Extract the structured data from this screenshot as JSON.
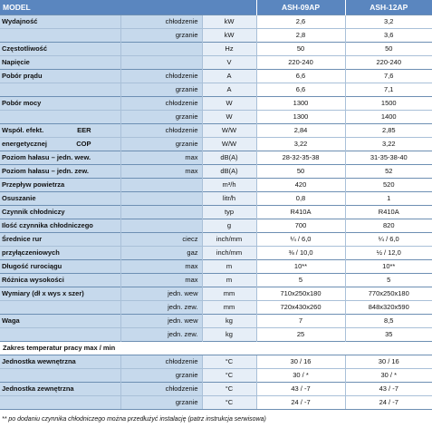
{
  "header": {
    "model": "MODEL",
    "col1": "ASH-09AP",
    "col2": "ASH-12AP"
  },
  "rows": [
    {
      "group": "Wydajność",
      "label": "chłodzenie",
      "unit": "kW",
      "v1": "2,6",
      "v2": "3,2",
      "top": true
    },
    {
      "group": "",
      "label": "grzanie",
      "unit": "kW",
      "v1": "2,8",
      "v2": "3,6",
      "top": false
    },
    {
      "group": "Częstotliwość",
      "label": "",
      "unit": "Hz",
      "v1": "50",
      "v2": "50",
      "top": true
    },
    {
      "group": "Napięcie",
      "label": "",
      "unit": "V",
      "v1": "220-240",
      "v2": "220-240",
      "top": false
    },
    {
      "group": "Pobór prądu",
      "label": "chłodzenie",
      "unit": "A",
      "v1": "6,6",
      "v2": "7,6",
      "top": true
    },
    {
      "group": "",
      "label": "grzanie",
      "unit": "A",
      "v1": "6,6",
      "v2": "7,1",
      "top": false
    },
    {
      "group": "Pobór mocy",
      "label": "chłodzenie",
      "unit": "W",
      "v1": "1300",
      "v2": "1500",
      "top": true
    },
    {
      "group": "",
      "label": "grzanie",
      "unit": "W",
      "v1": "1300",
      "v2": "1400",
      "top": false
    },
    {
      "group": "Współ. efekt.",
      "group_extra": "EER",
      "label": "chłodzenie",
      "unit": "W/W",
      "v1": "2,84",
      "v2": "2,85",
      "top": true
    },
    {
      "group": "energetycznej",
      "group_extra": "COP",
      "label": "grzanie",
      "unit": "W/W",
      "v1": "3,22",
      "v2": "3,22",
      "top": false
    },
    {
      "group": "Poziom hałasu – jedn. wew.",
      "label": "max",
      "unit": "dB(A)",
      "v1": "28-32-35-38",
      "v2": "31-35-38-40",
      "top": true
    },
    {
      "group": "Poziom hałasu – jedn. zew.",
      "label": "max",
      "unit": "dB(A)",
      "v1": "50",
      "v2": "52",
      "top": true
    },
    {
      "group": "Przepływ powietrza",
      "label": "",
      "unit": "m³/h",
      "v1": "420",
      "v2": "520",
      "top": true
    },
    {
      "group": "Osuszanie",
      "label": "",
      "unit": "litr/h",
      "v1": "0,8",
      "v2": "1",
      "top": true
    },
    {
      "group": "Czynnik chłodniczy",
      "label": "",
      "unit": "typ",
      "v1": "R410A",
      "v2": "R410A",
      "top": true
    },
    {
      "group": "Ilość czynnika chłodniczego",
      "label": "",
      "unit": "g",
      "v1": "700",
      "v2": "820",
      "top": true
    },
    {
      "group": "Średnice rur",
      "label": "ciecz",
      "unit": "inch/mm",
      "v1": "¼ / 6,0",
      "v2": "¼ / 6,0",
      "top": true
    },
    {
      "group": "przyłączeniowych",
      "label": "gaz",
      "unit": "inch/mm",
      "v1": "⅜ / 10,0",
      "v2": "½ / 12,0",
      "top": false
    },
    {
      "group": "Długość rurociągu",
      "label": "max",
      "unit": "m",
      "v1": "10**",
      "v2": "10**",
      "top": true
    },
    {
      "group": "Różnica wysokości",
      "label": "max",
      "unit": "m",
      "v1": "5",
      "v2": "5",
      "top": true
    },
    {
      "group": "Wymiary (dł x wys x szer)",
      "label": "jedn. wew",
      "unit": "mm",
      "v1": "710x250x180",
      "v2": "770x250x180",
      "top": true
    },
    {
      "group": "",
      "label": "jedn. zew.",
      "unit": "mm",
      "v1": "720x430x260",
      "v2": "848x320x590",
      "top": false
    },
    {
      "group": "Waga",
      "label": "jedn. wew",
      "unit": "kg",
      "v1": "7",
      "v2": "8,5",
      "top": true
    },
    {
      "group": "",
      "label": "jedn. zew.",
      "unit": "kg",
      "v1": "25",
      "v2": "35",
      "top": false
    }
  ],
  "section_title": "Zakres temperatur pracy max / min",
  "temp_rows": [
    {
      "group": "Jednostka wewnętrzna",
      "label": "chłodzenie",
      "unit": "°C",
      "v1": "30 / 16",
      "v2": "30 / 16",
      "top": true
    },
    {
      "group": "",
      "label": "grzanie",
      "unit": "°C",
      "v1": "30 / *",
      "v2": "30 / *",
      "top": false
    },
    {
      "group": "Jednostka zewnętrzna",
      "label": "chłodzenie",
      "unit": "°C",
      "v1": "43 / -7",
      "v2": "43 / -7",
      "top": true
    },
    {
      "group": "",
      "label": "grzanie",
      "unit": "°C",
      "v1": "24 / -7",
      "v2": "24 / -7",
      "top": false
    }
  ],
  "footnote": "** po dodaniu czynnika chłodniczego można przedłużyć instalację (patrz instrukcja serwisowa)"
}
